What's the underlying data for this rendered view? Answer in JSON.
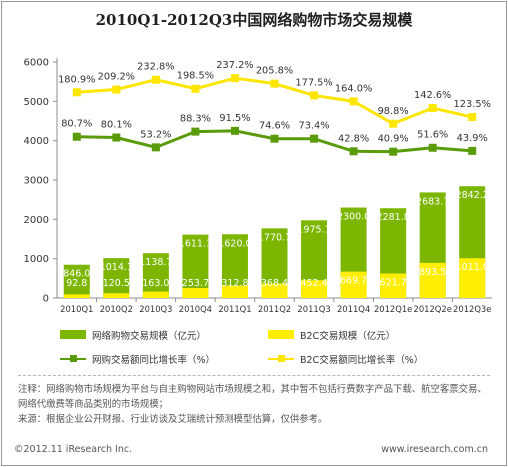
{
  "chart_data": {
    "type": "bar",
    "title": "2010Q1-2012Q3中国网络购物市场交易规模",
    "categories": [
      "2010Q1",
      "2010Q2",
      "2010Q3",
      "2010Q4",
      "2011Q1",
      "2011Q2",
      "2011Q3",
      "2011Q4",
      "2012Q1e",
      "2012Q2e",
      "2012Q3e"
    ],
    "ylim": [
      0,
      6000
    ],
    "yticks": [
      0,
      1000,
      2000,
      3000,
      4000,
      5000,
      6000
    ],
    "series": [
      {
        "name": "网络购物交易规模（亿元）",
        "kind": "bar",
        "color": "#7cb600",
        "values": [
          846.0,
          1014.1,
          1138.7,
          1611.1,
          1620.0,
          1770.7,
          1975.1,
          2300.0,
          2281.8,
          2683.7,
          2842.2
        ],
        "labels": [
          "846.0",
          "1014.1",
          "1138.7",
          "1611.1",
          "1620.0",
          "1770.7",
          "1975.1",
          "2300.0",
          "2281.8",
          "2683.7",
          "2842.2"
        ]
      },
      {
        "name": "B2C交易规模（亿元）",
        "kind": "bar",
        "color": "#ffee00",
        "values": [
          92.8,
          120.5,
          163.0,
          253.7,
          312.8,
          368.4,
          452.4,
          669.7,
          621.7,
          893.5,
          1011.0
        ],
        "labels": [
          "92.8",
          "120.5",
          "163.0",
          "253.7",
          "312.8",
          "368.4",
          "452.4",
          "669.7",
          "621.7",
          "893.5",
          "1011.0"
        ]
      },
      {
        "name": "网购交易额同比增长率（%）",
        "kind": "line",
        "color": "#5a9b0a",
        "values": [
          4100,
          4080,
          3830,
          4230,
          4250,
          4050,
          4050,
          3730,
          3720,
          3820,
          3740
        ],
        "labels": [
          "80.7%",
          "80.1%",
          "53.2%",
          "88.3%",
          "91.5%",
          "74.6%",
          "73.4%",
          "42.8%",
          "40.9%",
          "51.6%",
          "43.9%"
        ]
      },
      {
        "name": "B2C交易额同比增长率（%）",
        "kind": "line",
        "color": "#ffe600",
        "values": [
          5230,
          5300,
          5550,
          5320,
          5590,
          5450,
          5150,
          5000,
          4430,
          4830,
          4600
        ],
        "labels": [
          "180.9%",
          "209.2%",
          "232.8%",
          "198.5%",
          "237.2%",
          "205.8%",
          "177.5%",
          "164.0%",
          "98.8%",
          "142.6%",
          "123.5%"
        ]
      }
    ]
  },
  "legend": {
    "total_bar": "网络购物交易规模（亿元）",
    "b2c_bar": "B2C交易规模（亿元）",
    "total_growth": "网购交易额同比增长率（%）",
    "b2c_growth": "B2C交易额同比增长率（%）"
  },
  "notes": {
    "note": "注释：网络购物市场规模为平台与自主购物网站市场规模之和，其中暂不包括行费数字产品下载、航空客票交易、网络代缴费等商品类别的市场规模；",
    "source": "来源：根据企业公开财报、行业访谈及艾瑞统计预测模型估算，仅供参考。"
  },
  "footer": {
    "copyright": "©2012.11 iResearch Inc.",
    "website": "www.iresearch.com.cn"
  },
  "colors": {
    "total_bar": "#7cb600",
    "b2c_bar": "#ffee00",
    "total_line": "#5a9b0a",
    "b2c_line": "#ffe600",
    "axis": "#8c8c8c"
  }
}
